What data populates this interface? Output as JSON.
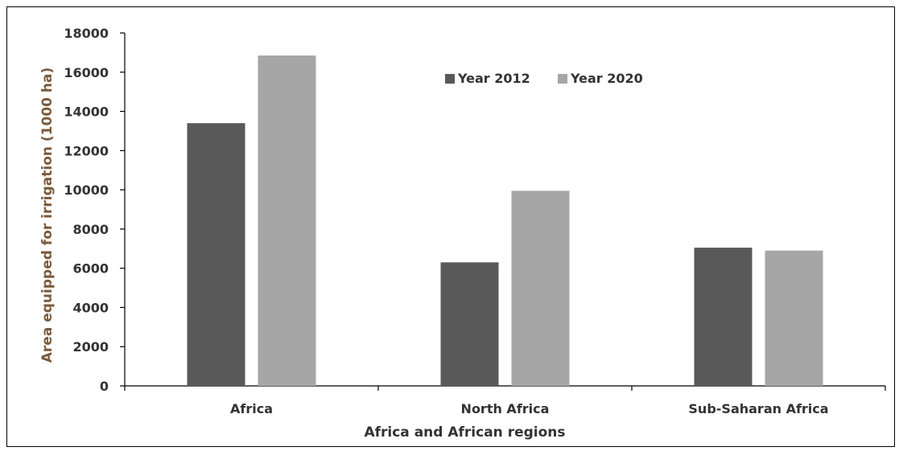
{
  "chart_data": {
    "type": "bar",
    "title": "",
    "xlabel": "Africa and African regions",
    "ylabel": "Area equipped for irrigation (1000 ha)",
    "categories": [
      "Africa",
      "North Africa",
      "Sub-Saharan Africa"
    ],
    "series": [
      {
        "name": "Year 2012",
        "values": [
          13400,
          6300,
          7050
        ],
        "color": "#595959"
      },
      {
        "name": "Year 2020",
        "values": [
          16850,
          9950,
          6900
        ],
        "color": "#a6a6a6"
      }
    ],
    "ylim": [
      0,
      18000
    ],
    "yticks": [
      "0",
      "2000",
      "4000",
      "6000",
      "8000",
      "10000",
      "12000",
      "14000",
      "16000",
      "18000"
    ],
    "grid": false,
    "legend_position": "top-center"
  }
}
